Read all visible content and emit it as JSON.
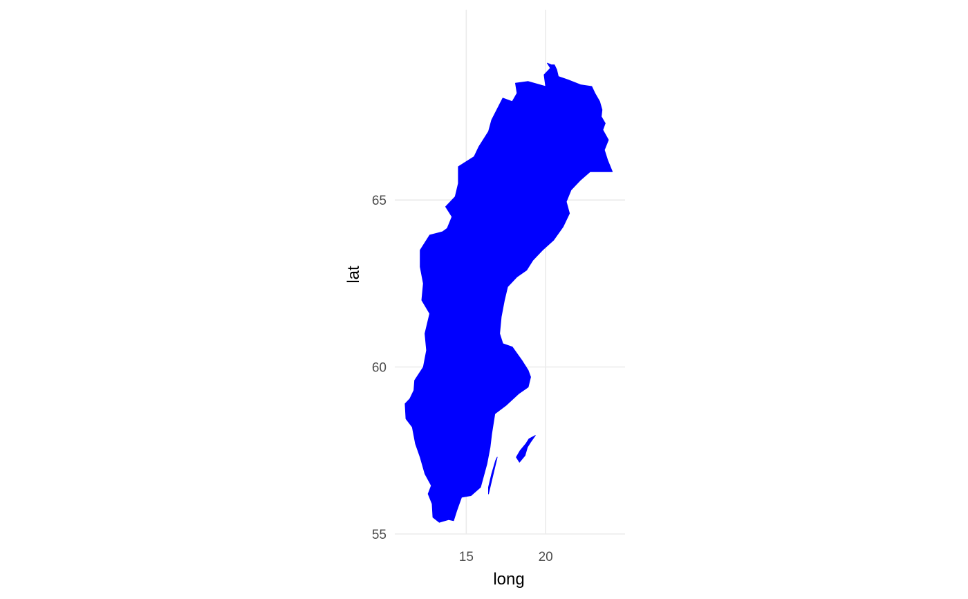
{
  "chart_data": {
    "type": "map",
    "region": "Sweden",
    "xlabel": "long",
    "ylabel": "lat",
    "xlim": [
      10.5,
      25.0
    ],
    "ylim": [
      55.0,
      70.7
    ],
    "x_ticks": [
      15,
      20
    ],
    "x_tick_labels": [
      "15",
      "20"
    ],
    "y_ticks": [
      55,
      60,
      65
    ],
    "y_tick_labels": [
      "55",
      "60",
      "65"
    ],
    "fill_color": "#0000ff",
    "grid": true,
    "grid_color": "#ebebeb",
    "background": "#ffffff",
    "legend": "none",
    "shapes": [
      {
        "name": "mainland",
        "coords": [
          [
            20.1,
            69.1
          ],
          [
            20.35,
            69.05
          ],
          [
            20.55,
            69.05
          ],
          [
            20.7,
            68.9
          ],
          [
            20.8,
            68.7
          ],
          [
            21.4,
            68.6
          ],
          [
            22.2,
            68.45
          ],
          [
            22.9,
            68.4
          ],
          [
            23.1,
            68.2
          ],
          [
            23.4,
            67.95
          ],
          [
            23.55,
            67.7
          ],
          [
            23.5,
            67.5
          ],
          [
            23.75,
            67.3
          ],
          [
            23.6,
            67.1
          ],
          [
            23.95,
            66.8
          ],
          [
            23.7,
            66.5
          ],
          [
            23.9,
            66.2
          ],
          [
            24.2,
            65.85
          ],
          [
            23.5,
            65.85
          ],
          [
            22.8,
            65.85
          ],
          [
            22.2,
            65.6
          ],
          [
            21.6,
            65.3
          ],
          [
            21.3,
            64.95
          ],
          [
            21.5,
            64.6
          ],
          [
            21.1,
            64.2
          ],
          [
            20.5,
            63.8
          ],
          [
            19.8,
            63.5
          ],
          [
            19.2,
            63.2
          ],
          [
            18.8,
            62.9
          ],
          [
            18.2,
            62.7
          ],
          [
            17.6,
            62.4
          ],
          [
            17.4,
            62.0
          ],
          [
            17.2,
            61.5
          ],
          [
            17.1,
            61.0
          ],
          [
            17.3,
            60.7
          ],
          [
            17.9,
            60.6
          ],
          [
            18.5,
            60.2
          ],
          [
            18.9,
            59.9
          ],
          [
            19.05,
            59.7
          ],
          [
            18.9,
            59.4
          ],
          [
            18.3,
            59.2
          ],
          [
            17.5,
            58.85
          ],
          [
            16.8,
            58.6
          ],
          [
            16.6,
            58.0
          ],
          [
            16.5,
            57.6
          ],
          [
            16.3,
            57.1
          ],
          [
            15.9,
            56.4
          ],
          [
            15.3,
            56.15
          ],
          [
            14.7,
            56.1
          ],
          [
            14.4,
            55.7
          ],
          [
            14.2,
            55.4
          ],
          [
            13.9,
            55.43
          ],
          [
            13.3,
            55.35
          ],
          [
            12.9,
            55.5
          ],
          [
            12.85,
            55.9
          ],
          [
            12.6,
            56.2
          ],
          [
            12.8,
            56.45
          ],
          [
            12.4,
            56.8
          ],
          [
            12.1,
            57.3
          ],
          [
            11.8,
            57.7
          ],
          [
            11.6,
            58.2
          ],
          [
            11.2,
            58.45
          ],
          [
            11.15,
            58.9
          ],
          [
            11.45,
            59.05
          ],
          [
            11.7,
            59.3
          ],
          [
            11.75,
            59.6
          ],
          [
            12.3,
            60.0
          ],
          [
            12.5,
            60.5
          ],
          [
            12.4,
            61.0
          ],
          [
            12.7,
            61.6
          ],
          [
            12.2,
            62.0
          ],
          [
            12.3,
            62.5
          ],
          [
            12.1,
            63.0
          ],
          [
            12.1,
            63.5
          ],
          [
            12.7,
            63.95
          ],
          [
            13.5,
            64.05
          ],
          [
            13.8,
            64.15
          ],
          [
            14.1,
            64.5
          ],
          [
            13.7,
            64.8
          ],
          [
            14.3,
            65.1
          ],
          [
            14.5,
            65.5
          ],
          [
            14.5,
            66.0
          ],
          [
            15.0,
            66.15
          ],
          [
            15.5,
            66.3
          ],
          [
            15.8,
            66.6
          ],
          [
            16.4,
            67.05
          ],
          [
            16.6,
            67.4
          ],
          [
            17.3,
            68.05
          ],
          [
            17.9,
            67.95
          ],
          [
            18.2,
            68.2
          ],
          [
            18.1,
            68.5
          ],
          [
            18.9,
            68.55
          ],
          [
            20.0,
            68.4
          ],
          [
            19.9,
            68.75
          ],
          [
            20.3,
            68.95
          ]
        ]
      },
      {
        "name": "gotland",
        "coords": [
          [
            18.35,
            57.15
          ],
          [
            18.7,
            57.35
          ],
          [
            18.85,
            57.6
          ],
          [
            19.05,
            57.75
          ],
          [
            19.35,
            57.95
          ],
          [
            18.95,
            57.85
          ],
          [
            18.75,
            57.7
          ],
          [
            18.4,
            57.5
          ],
          [
            18.15,
            57.3
          ]
        ]
      },
      {
        "name": "oland",
        "coords": [
          [
            16.4,
            56.2
          ],
          [
            16.55,
            56.5
          ],
          [
            16.75,
            56.9
          ],
          [
            16.95,
            57.3
          ],
          [
            16.85,
            57.2
          ],
          [
            16.6,
            56.8
          ],
          [
            16.4,
            56.4
          ]
        ]
      }
    ]
  }
}
